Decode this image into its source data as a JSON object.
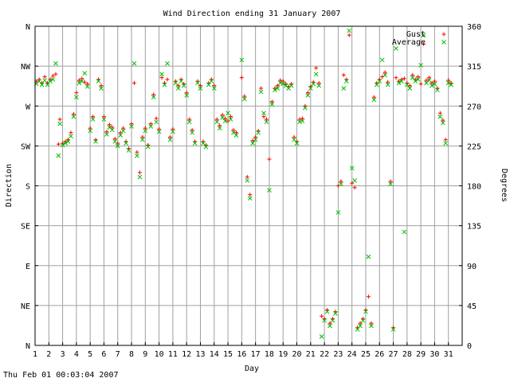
{
  "chart_data": {
    "type": "scatter",
    "title": "Wind Direction ending 31 January 2007",
    "xlabel": "Day",
    "ylabel": "Direction",
    "y2label": "Degrees",
    "xlim": [
      1,
      32
    ],
    "ylim": [
      0,
      360
    ],
    "x_ticks": [
      1,
      2,
      3,
      4,
      5,
      6,
      7,
      8,
      9,
      10,
      11,
      12,
      13,
      14,
      15,
      16,
      17,
      18,
      19,
      20,
      21,
      22,
      23,
      24,
      25,
      26,
      27,
      28,
      29,
      30,
      31
    ],
    "y_ticks": [
      {
        "value": 0,
        "label": "N"
      },
      {
        "value": 45,
        "label": "NE"
      },
      {
        "value": 90,
        "label": "E"
      },
      {
        "value": 135,
        "label": "SE"
      },
      {
        "value": 180,
        "label": "S"
      },
      {
        "value": 225,
        "label": "SW"
      },
      {
        "value": 270,
        "label": "W"
      },
      {
        "value": 315,
        "label": "NW"
      },
      {
        "value": 360,
        "label": "N"
      }
    ],
    "y2_ticks": [
      0,
      45,
      90,
      135,
      180,
      225,
      270,
      315,
      360
    ],
    "grid": true,
    "legend_position": "top-right",
    "timestamp": "Thu Feb 01 00:03:04 2007",
    "series": [
      {
        "name": "Gust",
        "marker": "plus",
        "color": "#ff0000",
        "points": [
          [
            1.1,
            298
          ],
          [
            1.3,
            300
          ],
          [
            1.5,
            296
          ],
          [
            1.7,
            303
          ],
          [
            1.9,
            296
          ],
          [
            2.1,
            300
          ],
          [
            2.3,
            304
          ],
          [
            2.5,
            306
          ],
          [
            2.7,
            227
          ],
          [
            2.8,
            255
          ],
          [
            3.0,
            228
          ],
          [
            3.2,
            230
          ],
          [
            3.4,
            232
          ],
          [
            3.6,
            240
          ],
          [
            3.8,
            261
          ],
          [
            4.0,
            285
          ],
          [
            4.2,
            299
          ],
          [
            4.4,
            301
          ],
          [
            4.6,
            297
          ],
          [
            4.8,
            295
          ],
          [
            5.0,
            245
          ],
          [
            5.2,
            258
          ],
          [
            5.4,
            232
          ],
          [
            5.6,
            300
          ],
          [
            5.8,
            293
          ],
          [
            6.0,
            258
          ],
          [
            6.2,
            241
          ],
          [
            6.4,
            249
          ],
          [
            6.6,
            246
          ],
          [
            6.8,
            233
          ],
          [
            7.0,
            228
          ],
          [
            7.2,
            240
          ],
          [
            7.4,
            245
          ],
          [
            7.6,
            230
          ],
          [
            7.8,
            222
          ],
          [
            8.0,
            250
          ],
          [
            8.2,
            296
          ],
          [
            8.4,
            218
          ],
          [
            8.6,
            195
          ],
          [
            8.8,
            235
          ],
          [
            9.0,
            245
          ],
          [
            9.2,
            226
          ],
          [
            9.4,
            250
          ],
          [
            9.6,
            283
          ],
          [
            9.8,
            256
          ],
          [
            10.0,
            244
          ],
          [
            10.2,
            302
          ],
          [
            10.4,
            296
          ],
          [
            10.6,
            300
          ],
          [
            10.8,
            235
          ],
          [
            11.0,
            244
          ],
          [
            11.2,
            298
          ],
          [
            11.4,
            293
          ],
          [
            11.6,
            300
          ],
          [
            11.8,
            295
          ],
          [
            12.0,
            285
          ],
          [
            12.2,
            255
          ],
          [
            12.4,
            243
          ],
          [
            12.6,
            230
          ],
          [
            12.8,
            298
          ],
          [
            13.0,
            293
          ],
          [
            13.2,
            230
          ],
          [
            13.4,
            226
          ],
          [
            13.6,
            296
          ],
          [
            13.8,
            300
          ],
          [
            14.0,
            293
          ],
          [
            14.2,
            255
          ],
          [
            14.4,
            248
          ],
          [
            14.6,
            260
          ],
          [
            14.8,
            256
          ],
          [
            15.0,
            253
          ],
          [
            15.2,
            258
          ],
          [
            15.4,
            243
          ],
          [
            15.6,
            240
          ],
          [
            16.0,
            302
          ],
          [
            16.2,
            281
          ],
          [
            16.4,
            190
          ],
          [
            16.6,
            170
          ],
          [
            16.8,
            231
          ],
          [
            17.0,
            235
          ],
          [
            17.2,
            242
          ],
          [
            17.4,
            290
          ],
          [
            17.6,
            258
          ],
          [
            17.8,
            255
          ],
          [
            18.0,
            210
          ],
          [
            18.2,
            275
          ],
          [
            18.4,
            290
          ],
          [
            18.6,
            293
          ],
          [
            18.8,
            299
          ],
          [
            19.0,
            298
          ],
          [
            19.2,
            295
          ],
          [
            19.4,
            292
          ],
          [
            19.6,
            295
          ],
          [
            19.8,
            235
          ],
          [
            20.0,
            230
          ],
          [
            20.2,
            255
          ],
          [
            20.4,
            256
          ],
          [
            20.6,
            270
          ],
          [
            20.8,
            285
          ],
          [
            21.0,
            292
          ],
          [
            21.2,
            297
          ],
          [
            21.4,
            313
          ],
          [
            21.6,
            296
          ],
          [
            21.8,
            33
          ],
          [
            22.0,
            30
          ],
          [
            22.2,
            40
          ],
          [
            22.4,
            25
          ],
          [
            22.6,
            30
          ],
          [
            22.8,
            38
          ],
          [
            23.0,
            180
          ],
          [
            23.2,
            185
          ],
          [
            23.4,
            305
          ],
          [
            23.6,
            300
          ],
          [
            23.8,
            350
          ],
          [
            24.0,
            183
          ],
          [
            24.2,
            178
          ],
          [
            24.4,
            20
          ],
          [
            24.6,
            25
          ],
          [
            24.8,
            30
          ],
          [
            25.0,
            40
          ],
          [
            25.2,
            55
          ],
          [
            25.4,
            25
          ],
          [
            25.6,
            280
          ],
          [
            25.8,
            296
          ],
          [
            26.0,
            300
          ],
          [
            26.2,
            303
          ],
          [
            26.4,
            308
          ],
          [
            26.6,
            297
          ],
          [
            26.8,
            185
          ],
          [
            27.0,
            20
          ],
          [
            27.2,
            302
          ],
          [
            27.4,
            298
          ],
          [
            27.6,
            300
          ],
          [
            27.8,
            301
          ],
          [
            28.0,
            296
          ],
          [
            28.2,
            293
          ],
          [
            28.4,
            305
          ],
          [
            28.6,
            300
          ],
          [
            28.8,
            303
          ],
          [
            29.0,
            295
          ],
          [
            29.2,
            340
          ],
          [
            29.4,
            299
          ],
          [
            29.6,
            302
          ],
          [
            29.8,
            296
          ],
          [
            30.0,
            298
          ],
          [
            30.2,
            290
          ],
          [
            30.4,
            262
          ],
          [
            30.6,
            254
          ],
          [
            30.8,
            232
          ],
          [
            31.0,
            299
          ],
          [
            31.2,
            296
          ]
        ]
      },
      {
        "name": "Average",
        "marker": "cross",
        "color": "#00c000",
        "points": [
          [
            1.1,
            295
          ],
          [
            1.3,
            298
          ],
          [
            1.5,
            294
          ],
          [
            1.7,
            299
          ],
          [
            1.9,
            294
          ],
          [
            2.1,
            298
          ],
          [
            2.3,
            300
          ],
          [
            2.5,
            318
          ],
          [
            2.7,
            214
          ],
          [
            2.8,
            250
          ],
          [
            3.0,
            226
          ],
          [
            3.2,
            228
          ],
          [
            3.4,
            230
          ],
          [
            3.6,
            236
          ],
          [
            3.8,
            258
          ],
          [
            4.0,
            280
          ],
          [
            4.2,
            296
          ],
          [
            4.4,
            298
          ],
          [
            4.6,
            307
          ],
          [
            4.8,
            292
          ],
          [
            5.0,
            242
          ],
          [
            5.2,
            255
          ],
          [
            5.4,
            230
          ],
          [
            5.6,
            298
          ],
          [
            5.8,
            290
          ],
          [
            6.0,
            255
          ],
          [
            6.2,
            238
          ],
          [
            6.4,
            246
          ],
          [
            6.6,
            243
          ],
          [
            6.8,
            230
          ],
          [
            7.0,
            225
          ],
          [
            7.2,
            237
          ],
          [
            7.4,
            242
          ],
          [
            7.6,
            228
          ],
          [
            7.8,
            220
          ],
          [
            8.0,
            247
          ],
          [
            8.2,
            318
          ],
          [
            8.4,
            214
          ],
          [
            8.6,
            190
          ],
          [
            8.8,
            232
          ],
          [
            9.0,
            242
          ],
          [
            9.2,
            224
          ],
          [
            9.4,
            247
          ],
          [
            9.6,
            280
          ],
          [
            9.8,
            252
          ],
          [
            10.0,
            241
          ],
          [
            10.2,
            306
          ],
          [
            10.4,
            294
          ],
          [
            10.6,
            318
          ],
          [
            10.8,
            232
          ],
          [
            11.0,
            241
          ],
          [
            11.2,
            296
          ],
          [
            11.4,
            290
          ],
          [
            11.6,
            298
          ],
          [
            11.8,
            293
          ],
          [
            12.0,
            282
          ],
          [
            12.2,
            252
          ],
          [
            12.4,
            240
          ],
          [
            12.6,
            228
          ],
          [
            12.8,
            296
          ],
          [
            13.0,
            290
          ],
          [
            13.2,
            228
          ],
          [
            13.4,
            224
          ],
          [
            13.6,
            294
          ],
          [
            13.8,
            298
          ],
          [
            14.0,
            290
          ],
          [
            14.2,
            252
          ],
          [
            14.4,
            245
          ],
          [
            14.6,
            257
          ],
          [
            14.8,
            253
          ],
          [
            15.0,
            262
          ],
          [
            15.2,
            255
          ],
          [
            15.4,
            240
          ],
          [
            15.6,
            237
          ],
          [
            16.0,
            322
          ],
          [
            16.2,
            278
          ],
          [
            16.4,
            186
          ],
          [
            16.6,
            166
          ],
          [
            16.8,
            228
          ],
          [
            17.0,
            232
          ],
          [
            17.2,
            240
          ],
          [
            17.4,
            286
          ],
          [
            17.6,
            262
          ],
          [
            17.8,
            252
          ],
          [
            18.0,
            175
          ],
          [
            18.2,
            272
          ],
          [
            18.4,
            288
          ],
          [
            18.6,
            290
          ],
          [
            18.8,
            296
          ],
          [
            19.0,
            295
          ],
          [
            19.2,
            293
          ],
          [
            19.4,
            290
          ],
          [
            19.6,
            293
          ],
          [
            19.8,
            232
          ],
          [
            20.0,
            228
          ],
          [
            20.2,
            252
          ],
          [
            20.4,
            253
          ],
          [
            20.6,
            268
          ],
          [
            20.8,
            282
          ],
          [
            21.0,
            290
          ],
          [
            21.2,
            295
          ],
          [
            21.4,
            306
          ],
          [
            21.6,
            293
          ],
          [
            21.8,
            10
          ],
          [
            22.0,
            28
          ],
          [
            22.2,
            38
          ],
          [
            22.4,
            22
          ],
          [
            22.6,
            28
          ],
          [
            22.8,
            36
          ],
          [
            23.0,
            150
          ],
          [
            23.2,
            182
          ],
          [
            23.4,
            290
          ],
          [
            23.6,
            298
          ],
          [
            23.8,
            355
          ],
          [
            24.0,
            200
          ],
          [
            24.2,
            186
          ],
          [
            24.4,
            18
          ],
          [
            24.6,
            22
          ],
          [
            24.8,
            28
          ],
          [
            25.0,
            38
          ],
          [
            25.2,
            100
          ],
          [
            25.4,
            22
          ],
          [
            25.6,
            277
          ],
          [
            25.8,
            294
          ],
          [
            26.0,
            298
          ],
          [
            26.2,
            322
          ],
          [
            26.4,
            305
          ],
          [
            26.6,
            294
          ],
          [
            26.8,
            182
          ],
          [
            27.0,
            18
          ],
          [
            27.2,
            335
          ],
          [
            27.4,
            296
          ],
          [
            27.6,
            298
          ],
          [
            27.8,
            128
          ],
          [
            28.0,
            294
          ],
          [
            28.2,
            290
          ],
          [
            28.4,
            302
          ],
          [
            28.6,
            298
          ],
          [
            28.8,
            300
          ],
          [
            29.0,
            316
          ],
          [
            29.2,
            350
          ],
          [
            29.4,
            296
          ],
          [
            29.6,
            299
          ],
          [
            29.8,
            293
          ],
          [
            30.0,
            295
          ],
          [
            30.2,
            288
          ],
          [
            30.4,
            258
          ],
          [
            30.6,
            251
          ],
          [
            30.8,
            228
          ],
          [
            31.0,
            296
          ],
          [
            31.2,
            294
          ]
        ]
      }
    ]
  }
}
